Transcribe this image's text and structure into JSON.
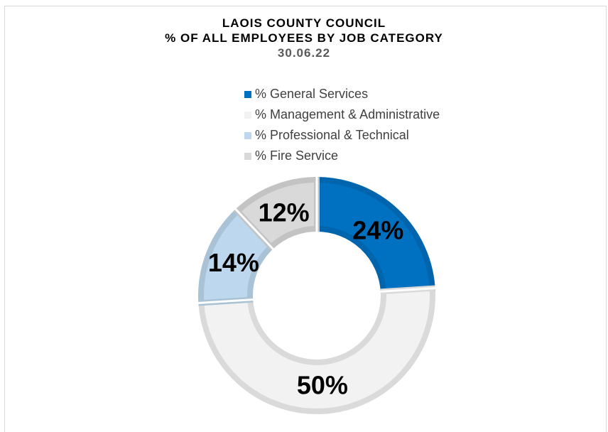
{
  "chart_data": {
    "type": "pie",
    "style": "doughnut",
    "title_lines": [
      "LAOIS COUNTY COUNCIL",
      "% OF ALL EMPLOYEES BY JOB CATEGORY"
    ],
    "subtitle": "30.06.22",
    "legend_position": "top",
    "slices": [
      {
        "name": "% General Services",
        "value": 24,
        "label": "24%",
        "color": "#0070c0"
      },
      {
        "name": "% Management & Administrative",
        "value": 50,
        "label": "50%",
        "color": "#f2f2f2"
      },
      {
        "name": "% Professional & Technical",
        "value": 14,
        "label": "14%",
        "color": "#bdd7ee"
      },
      {
        "name": "% Fire Service",
        "value": 12,
        "label": "12%",
        "color": "#d9d9d9"
      }
    ]
  }
}
